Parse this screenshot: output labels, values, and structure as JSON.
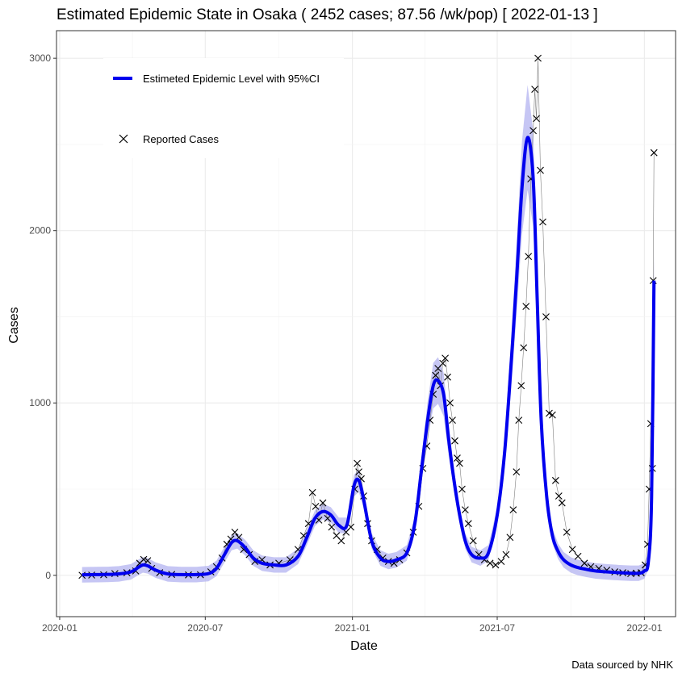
{
  "chart_data": {
    "type": "line",
    "title": "Estimated Epidemic State in Osaka  ( 2452 cases; 87.56 /wk/pop) [ 2022-01-13 ]",
    "xlabel": "Date",
    "ylabel": "Cases",
    "caption": "Data sourced by NHK",
    "x_range": [
      "2019-12-28",
      "2022-02-09"
    ],
    "ylim": [
      -240,
      3160
    ],
    "x_ticks": [
      {
        "date": "2020-01-01",
        "label": "2020-01"
      },
      {
        "date": "2020-07-01",
        "label": "2020-07"
      },
      {
        "date": "2021-01-01",
        "label": "2021-01"
      },
      {
        "date": "2021-07-01",
        "label": "2021-07"
      },
      {
        "date": "2022-01-01",
        "label": "2022-01"
      }
    ],
    "y_ticks": [
      0,
      1000,
      2000,
      3000
    ],
    "grid": true,
    "legend": {
      "placement": "top-left",
      "entries": [
        "Estimeted Epidemic Level with 95%CI",
        "Reported Cases"
      ]
    },
    "series": [
      {
        "name": "Estimeted Epidemic Level with 95%CI",
        "kind": "line",
        "color": "#0000ee",
        "band_color": "#b3b3f0",
        "x": [
          "2020-01-29",
          "2020-02-15",
          "2020-03-01",
          "2020-03-15",
          "2020-03-30",
          "2020-04-08",
          "2020-04-14",
          "2020-04-20",
          "2020-04-30",
          "2020-05-15",
          "2020-06-01",
          "2020-06-20",
          "2020-07-05",
          "2020-07-15",
          "2020-07-25",
          "2020-08-03",
          "2020-08-10",
          "2020-08-20",
          "2020-08-30",
          "2020-09-10",
          "2020-09-25",
          "2020-10-10",
          "2020-10-25",
          "2020-11-05",
          "2020-11-15",
          "2020-11-25",
          "2020-12-05",
          "2020-12-15",
          "2020-12-25",
          "2021-01-03",
          "2021-01-09",
          "2021-01-15",
          "2021-01-25",
          "2021-02-05",
          "2021-02-15",
          "2021-02-25",
          "2021-03-10",
          "2021-03-20",
          "2021-03-28",
          "2021-04-05",
          "2021-04-12",
          "2021-04-18",
          "2021-04-25",
          "2021-05-01",
          "2021-05-08",
          "2021-05-15",
          "2021-05-22",
          "2021-05-30",
          "2021-06-10",
          "2021-06-20",
          "2021-07-01",
          "2021-07-10",
          "2021-07-18",
          "2021-07-25",
          "2021-08-01",
          "2021-08-08",
          "2021-08-15",
          "2021-08-20",
          "2021-08-25",
          "2021-09-01",
          "2021-09-08",
          "2021-09-15",
          "2021-09-22",
          "2021-10-01",
          "2021-10-10",
          "2021-10-20",
          "2021-11-01",
          "2021-11-15",
          "2021-12-01",
          "2021-12-15",
          "2021-12-25",
          "2022-01-01",
          "2022-01-06",
          "2022-01-10",
          "2022-01-13"
        ],
        "y": [
          3,
          4,
          5,
          8,
          20,
          45,
          60,
          55,
          30,
          8,
          4,
          4,
          10,
          40,
          120,
          190,
          200,
          160,
          100,
          70,
          60,
          60,
          110,
          220,
          330,
          370,
          350,
          290,
          290,
          520,
          550,
          440,
          200,
          100,
          80,
          90,
          130,
          300,
          600,
          900,
          1100,
          1130,
          1050,
          800,
          550,
          350,
          200,
          120,
          100,
          130,
          350,
          700,
          1200,
          1700,
          2250,
          2540,
          2300,
          1600,
          900,
          450,
          230,
          140,
          90,
          60,
          45,
          35,
          25,
          20,
          15,
          12,
          12,
          25,
          80,
          450,
          1710
        ]
      },
      {
        "name": "Reported Cases",
        "kind": "points",
        "marker": "x",
        "color": "#000000",
        "x": [
          "2020-01-29",
          "2020-02-10",
          "2020-02-25",
          "2020-03-10",
          "2020-03-25",
          "2020-04-05",
          "2020-04-10",
          "2020-04-15",
          "2020-04-20",
          "2020-04-25",
          "2020-05-05",
          "2020-05-20",
          "2020-06-10",
          "2020-06-25",
          "2020-07-08",
          "2020-07-15",
          "2020-07-22",
          "2020-07-28",
          "2020-08-02",
          "2020-08-07",
          "2020-08-12",
          "2020-08-18",
          "2020-08-25",
          "2020-09-01",
          "2020-09-10",
          "2020-09-20",
          "2020-10-01",
          "2020-10-15",
          "2020-10-25",
          "2020-11-01",
          "2020-11-07",
          "2020-11-12",
          "2020-11-16",
          "2020-11-20",
          "2020-11-25",
          "2020-12-01",
          "2020-12-06",
          "2020-12-12",
          "2020-12-18",
          "2020-12-24",
          "2020-12-30",
          "2021-01-04",
          "2021-01-07",
          "2021-01-09",
          "2021-01-12",
          "2021-01-15",
          "2021-01-20",
          "2021-01-25",
          "2021-02-01",
          "2021-02-08",
          "2021-02-15",
          "2021-02-22",
          "2021-03-01",
          "2021-03-10",
          "2021-03-18",
          "2021-03-25",
          "2021-03-30",
          "2021-04-04",
          "2021-04-08",
          "2021-04-12",
          "2021-04-15",
          "2021-04-18",
          "2021-04-21",
          "2021-04-24",
          "2021-04-27",
          "2021-04-30",
          "2021-05-03",
          "2021-05-06",
          "2021-05-09",
          "2021-05-12",
          "2021-05-15",
          "2021-05-18",
          "2021-05-22",
          "2021-05-26",
          "2021-06-01",
          "2021-06-08",
          "2021-06-15",
          "2021-06-22",
          "2021-06-29",
          "2021-07-06",
          "2021-07-12",
          "2021-07-17",
          "2021-07-21",
          "2021-07-25",
          "2021-07-28",
          "2021-07-31",
          "2021-08-03",
          "2021-08-06",
          "2021-08-09",
          "2021-08-12",
          "2021-08-15",
          "2021-08-17",
          "2021-08-19",
          "2021-08-21",
          "2021-08-24",
          "2021-08-27",
          "2021-08-31",
          "2021-09-04",
          "2021-09-08",
          "2021-09-12",
          "2021-09-16",
          "2021-09-20",
          "2021-09-26",
          "2021-10-03",
          "2021-10-10",
          "2021-10-18",
          "2021-10-26",
          "2021-11-05",
          "2021-11-15",
          "2021-11-25",
          "2021-12-05",
          "2021-12-15",
          "2021-12-22",
          "2021-12-28",
          "2022-01-02",
          "2022-01-05",
          "2022-01-07",
          "2022-01-09",
          "2022-01-11",
          "2022-01-12",
          "2022-01-13"
        ],
        "y": [
          0,
          1,
          3,
          10,
          15,
          25,
          70,
          92,
          85,
          40,
          15,
          5,
          2,
          3,
          20,
          50,
          100,
          180,
          210,
          250,
          220,
          150,
          120,
          80,
          90,
          60,
          70,
          90,
          150,
          230,
          300,
          480,
          400,
          320,
          420,
          330,
          280,
          230,
          200,
          250,
          280,
          500,
          650,
          600,
          560,
          460,
          300,
          200,
          150,
          100,
          80,
          70,
          90,
          130,
          250,
          400,
          620,
          750,
          900,
          1050,
          1160,
          1200,
          1100,
          1230,
          1260,
          1150,
          1000,
          900,
          780,
          680,
          650,
          500,
          380,
          300,
          200,
          120,
          90,
          70,
          60,
          80,
          120,
          220,
          380,
          600,
          900,
          1100,
          1320,
          1560,
          1850,
          2300,
          2580,
          2820,
          2650,
          3000,
          2350,
          2050,
          1500,
          940,
          930,
          550,
          460,
          420,
          250,
          150,
          110,
          70,
          50,
          40,
          30,
          20,
          15,
          10,
          12,
          15,
          60,
          180,
          500,
          880,
          620,
          1710,
          2452
        ]
      }
    ]
  }
}
